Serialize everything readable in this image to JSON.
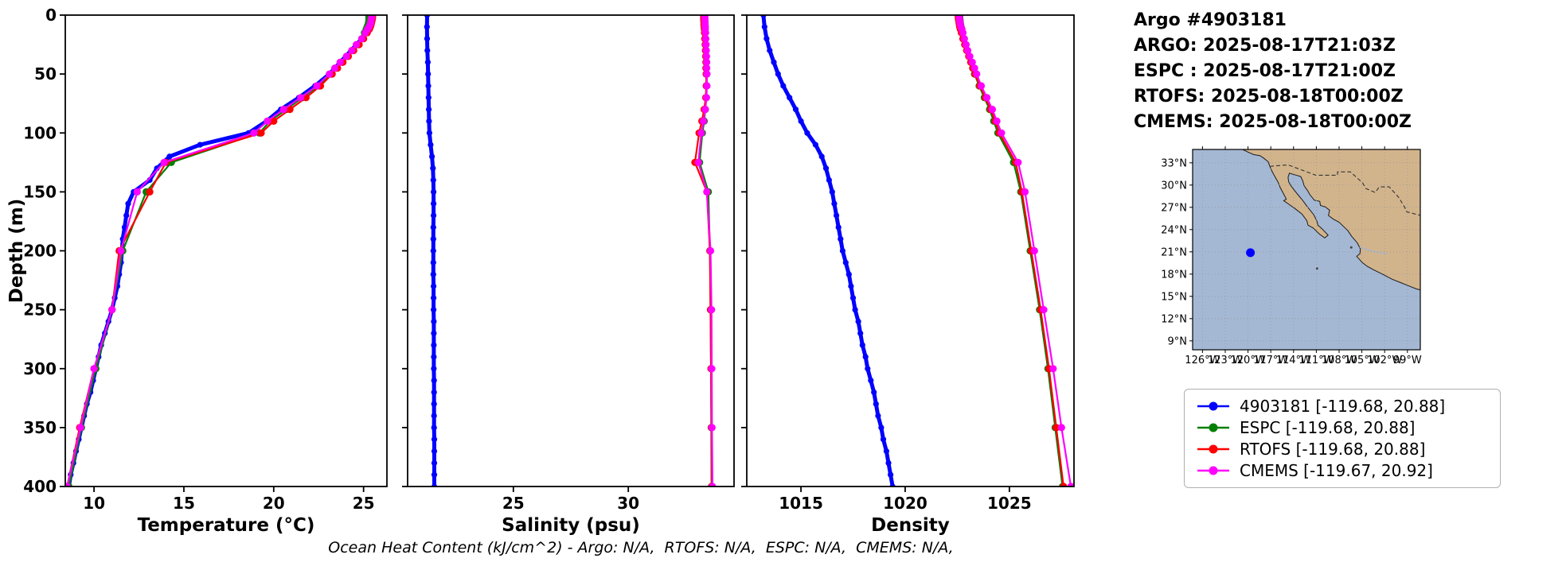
{
  "header": {
    "title": "Argo #4903181",
    "lines": [
      "ARGO: 2025-08-17T21:03Z",
      "ESPC : 2025-08-17T21:00Z",
      "RTOFS: 2025-08-18T00:00Z",
      "CMEMS: 2025-08-18T00:00Z"
    ]
  },
  "footer": {
    "caption": "Ocean Heat Content (kJ/cm^2) - Argo: N/A,  RTOFS: N/A,  ESPC: N/A,  CMEMS: N/A,"
  },
  "legend": {
    "items": [
      {
        "label": "4903181 [-119.68, 20.88]",
        "color": "#0000ff"
      },
      {
        "label": "ESPC [-119.68, 20.88]",
        "color": "#008000"
      },
      {
        "label": "RTOFS [-119.68, 20.88]",
        "color": "#ff0000"
      },
      {
        "label": "CMEMS [-119.67, 20.92]",
        "color": "#ff00ff"
      }
    ]
  },
  "map": {
    "extent": {
      "lon": [
        -127.3,
        -97.3
      ],
      "lat": [
        7.8,
        34.8
      ]
    },
    "colors": {
      "ocean": "#a4b8d4",
      "land": "#d2b48c",
      "coast": "#1a1a1a",
      "border": "#333333",
      "grid": "#999999"
    },
    "lat_ticks": {
      "values": [
        33,
        30,
        27,
        24,
        21,
        18,
        15,
        12,
        9
      ],
      "labels": [
        "33°N",
        "30°N",
        "27°N",
        "24°N",
        "21°N",
        "18°N",
        "15°N",
        "12°N",
        "9°N"
      ]
    },
    "lon_ticks": {
      "values": [
        -126,
        -123,
        -120,
        -117,
        -114,
        -111,
        -108,
        -105,
        -102,
        -99
      ],
      "labels": [
        "126°W",
        "123°W",
        "120°W",
        "117°W",
        "114°W",
        "111°W",
        "108°W",
        "105°W",
        "102°W",
        "99°W"
      ]
    },
    "marker": {
      "lon": -119.68,
      "lat": 20.88,
      "color": "#0000ff"
    }
  },
  "chart_data": [
    {
      "type": "line",
      "name": "temperature",
      "xlabel": "Temperature (°C)",
      "ylabel": "Depth (m)",
      "xlim": [
        8.4,
        26.3
      ],
      "ylim": [
        0,
        400
      ],
      "xticks": [
        10,
        15,
        20,
        25
      ],
      "yticks": [
        0,
        50,
        100,
        150,
        200,
        250,
        300,
        350,
        400
      ],
      "grid": false,
      "y_axis_inverted_depth": true,
      "series": [
        {
          "name": "4903181",
          "color": "#0000ff",
          "depths": [
            0,
            10,
            20,
            30,
            40,
            50,
            60,
            70,
            80,
            90,
            100,
            110,
            120,
            130,
            140,
            150,
            160,
            170,
            180,
            190,
            200,
            210,
            220,
            230,
            240,
            250,
            260,
            270,
            280,
            290,
            300,
            310,
            320,
            330,
            340,
            350,
            360,
            370,
            380,
            390,
            400
          ],
          "values": [
            25.4,
            25.3,
            24.9,
            24.3,
            23.7,
            23.1,
            22.3,
            21.4,
            20.4,
            19.6,
            18.6,
            15.9,
            14.2,
            13.5,
            13.1,
            12.2,
            11.9,
            11.8,
            11.7,
            11.6,
            11.55,
            11.5,
            11.4,
            11.3,
            11.15,
            11.0,
            10.8,
            10.6,
            10.4,
            10.25,
            10.1,
            9.95,
            9.8,
            9.6,
            9.45,
            9.3,
            9.15,
            9.0,
            8.85,
            8.7,
            8.6
          ]
        },
        {
          "name": "ESPC",
          "color": "#008000",
          "depths": [
            0,
            2,
            4,
            6,
            8,
            10,
            12,
            15,
            20,
            25,
            30,
            35,
            40,
            45,
            50,
            60,
            70,
            80,
            90,
            100,
            125,
            150,
            200,
            250,
            300,
            350,
            400
          ],
          "values": [
            25.3,
            25.3,
            25.3,
            25.28,
            25.25,
            25.2,
            25.15,
            25.05,
            24.9,
            24.65,
            24.4,
            24.1,
            23.8,
            23.5,
            23.2,
            22.5,
            21.6,
            20.7,
            19.8,
            19.2,
            14.3,
            12.9,
            11.6,
            11.0,
            10.1,
            9.3,
            8.6
          ]
        },
        {
          "name": "RTOFS",
          "color": "#ff0000",
          "depths": [
            0,
            2,
            4,
            6,
            8,
            10,
            12,
            15,
            20,
            25,
            30,
            35,
            40,
            45,
            50,
            60,
            70,
            80,
            90,
            100,
            125,
            150,
            200,
            250,
            300,
            350,
            400
          ],
          "values": [
            25.5,
            25.5,
            25.48,
            25.45,
            25.42,
            25.38,
            25.32,
            25.2,
            25.0,
            24.75,
            24.45,
            24.15,
            23.85,
            23.55,
            23.25,
            22.6,
            21.8,
            20.9,
            20.0,
            19.3,
            14.0,
            13.1,
            11.4,
            11.0,
            10.0,
            9.2,
            8.5
          ]
        },
        {
          "name": "CMEMS",
          "color": "#ff00ff",
          "depths": [
            0,
            2,
            4,
            6,
            8,
            10,
            12,
            15,
            20,
            25,
            30,
            35,
            40,
            45,
            50,
            60,
            70,
            80,
            90,
            100,
            125,
            150,
            200,
            250,
            300,
            350,
            400
          ],
          "values": [
            25.45,
            25.45,
            25.42,
            25.4,
            25.36,
            25.3,
            25.22,
            25.1,
            24.9,
            24.6,
            24.35,
            24.05,
            23.7,
            23.4,
            23.1,
            22.4,
            21.5,
            20.55,
            19.65,
            18.9,
            13.9,
            12.4,
            11.5,
            11.0,
            10.0,
            9.25,
            8.5
          ]
        }
      ]
    },
    {
      "type": "line",
      "name": "salinity",
      "xlabel": "Salinity (psu)",
      "ylabel": "Depth (m)",
      "xlim": [
        20.4,
        34.6
      ],
      "ylim": [
        0,
        400
      ],
      "xticks": [
        25,
        30
      ],
      "yticks": [
        0,
        50,
        100,
        150,
        200,
        250,
        300,
        350,
        400
      ],
      "grid": false,
      "y_axis_inverted_depth": true,
      "series": [
        {
          "name": "4903181",
          "color": "#0000ff",
          "depths": [
            0,
            10,
            20,
            30,
            40,
            50,
            60,
            70,
            80,
            90,
            100,
            110,
            120,
            130,
            140,
            150,
            160,
            170,
            180,
            190,
            200,
            210,
            220,
            230,
            240,
            250,
            260,
            270,
            280,
            290,
            300,
            310,
            320,
            330,
            340,
            350,
            360,
            370,
            380,
            390,
            400
          ],
          "values": [
            21.25,
            21.24,
            21.25,
            21.26,
            21.28,
            21.29,
            21.3,
            21.31,
            21.32,
            21.33,
            21.35,
            21.4,
            21.46,
            21.5,
            21.52,
            21.53,
            21.53,
            21.53,
            21.52,
            21.52,
            21.52,
            21.52,
            21.52,
            21.53,
            21.53,
            21.53,
            21.54,
            21.54,
            21.54,
            21.54,
            21.54,
            21.55,
            21.55,
            21.55,
            21.55,
            21.55,
            21.56,
            21.56,
            21.56,
            21.56,
            21.56
          ]
        },
        {
          "name": "ESPC",
          "color": "#008000",
          "depths": [
            0,
            2,
            4,
            6,
            8,
            10,
            12,
            15,
            20,
            25,
            30,
            35,
            40,
            45,
            50,
            60,
            70,
            80,
            90,
            100,
            125,
            150,
            200,
            250,
            300,
            350,
            400
          ],
          "values": [
            33.3,
            33.3,
            33.3,
            33.3,
            33.31,
            33.31,
            33.32,
            33.33,
            33.34,
            33.35,
            33.36,
            33.37,
            33.38,
            33.38,
            33.39,
            33.4,
            33.38,
            33.35,
            33.3,
            33.22,
            33.1,
            33.48,
            33.55,
            33.58,
            33.6,
            33.61,
            33.62
          ]
        },
        {
          "name": "RTOFS",
          "color": "#ff0000",
          "depths": [
            0,
            2,
            4,
            6,
            8,
            10,
            12,
            15,
            20,
            25,
            30,
            35,
            40,
            45,
            50,
            60,
            70,
            80,
            90,
            100,
            125,
            150,
            200,
            250,
            300,
            350,
            400
          ],
          "values": [
            33.28,
            33.28,
            33.28,
            33.29,
            33.29,
            33.3,
            33.31,
            33.32,
            33.33,
            33.35,
            33.36,
            33.37,
            33.38,
            33.38,
            33.39,
            33.39,
            33.37,
            33.3,
            33.2,
            33.08,
            32.9,
            33.42,
            33.55,
            33.58,
            33.6,
            33.62,
            33.63
          ]
        },
        {
          "name": "CMEMS",
          "color": "#ff00ff",
          "depths": [
            0,
            2,
            4,
            6,
            8,
            10,
            12,
            15,
            20,
            25,
            30,
            35,
            40,
            45,
            50,
            60,
            70,
            80,
            90,
            100,
            125,
            150,
            200,
            250,
            300,
            350,
            400
          ],
          "values": [
            33.33,
            33.33,
            33.33,
            33.34,
            33.34,
            33.35,
            33.35,
            33.36,
            33.37,
            33.38,
            33.39,
            33.4,
            33.41,
            33.41,
            33.42,
            33.42,
            33.4,
            33.35,
            33.27,
            33.18,
            33.05,
            33.42,
            33.58,
            33.62,
            33.63,
            33.64,
            33.66
          ]
        }
      ]
    },
    {
      "type": "line",
      "name": "density",
      "xlabel": "Density",
      "ylabel": "Depth (m)",
      "xlim": [
        1012.4,
        1028.1
      ],
      "ylim": [
        0,
        400
      ],
      "xticks": [
        1015,
        1020,
        1025
      ],
      "yticks": [
        0,
        50,
        100,
        150,
        200,
        250,
        300,
        350,
        400
      ],
      "grid": false,
      "y_axis_inverted_depth": true,
      "series": [
        {
          "name": "4903181",
          "color": "#0000ff",
          "depths": [
            0,
            10,
            20,
            30,
            40,
            50,
            60,
            70,
            80,
            90,
            100,
            110,
            120,
            130,
            140,
            150,
            160,
            170,
            180,
            190,
            200,
            210,
            220,
            230,
            240,
            250,
            260,
            270,
            280,
            290,
            300,
            310,
            320,
            330,
            340,
            350,
            360,
            370,
            380,
            390,
            400
          ],
          "values": [
            1013.2,
            1013.25,
            1013.35,
            1013.5,
            1013.7,
            1013.9,
            1014.15,
            1014.45,
            1014.75,
            1015.0,
            1015.3,
            1015.7,
            1016.0,
            1016.2,
            1016.35,
            1016.5,
            1016.6,
            1016.7,
            1016.8,
            1016.9,
            1017.0,
            1017.15,
            1017.3,
            1017.4,
            1017.5,
            1017.6,
            1017.75,
            1017.85,
            1017.95,
            1018.1,
            1018.2,
            1018.35,
            1018.5,
            1018.6,
            1018.7,
            1018.85,
            1018.95,
            1019.1,
            1019.2,
            1019.3,
            1019.4
          ]
        },
        {
          "name": "ESPC",
          "color": "#008000",
          "depths": [
            0,
            2,
            4,
            6,
            8,
            10,
            12,
            15,
            20,
            25,
            30,
            35,
            40,
            45,
            50,
            60,
            70,
            80,
            90,
            100,
            125,
            150,
            200,
            250,
            300,
            350,
            400
          ],
          "values": [
            1022.62,
            1022.62,
            1022.63,
            1022.64,
            1022.66,
            1022.68,
            1022.7,
            1022.74,
            1022.8,
            1022.88,
            1022.97,
            1023.06,
            1023.15,
            1023.24,
            1023.33,
            1023.55,
            1023.8,
            1024.05,
            1024.25,
            1024.45,
            1025.2,
            1025.55,
            1026.0,
            1026.45,
            1026.85,
            1027.2,
            1027.55
          ]
        },
        {
          "name": "RTOFS",
          "color": "#ff0000",
          "depths": [
            0,
            2,
            4,
            6,
            8,
            10,
            12,
            15,
            20,
            25,
            30,
            35,
            40,
            45,
            50,
            60,
            70,
            80,
            90,
            100,
            125,
            150,
            200,
            250,
            300,
            350,
            400
          ],
          "values": [
            1022.55,
            1022.55,
            1022.56,
            1022.58,
            1022.6,
            1022.62,
            1022.65,
            1022.7,
            1022.77,
            1022.86,
            1022.95,
            1023.05,
            1023.15,
            1023.25,
            1023.35,
            1023.58,
            1023.85,
            1024.1,
            1024.32,
            1024.52,
            1025.3,
            1025.6,
            1026.05,
            1026.5,
            1026.9,
            1027.25,
            1027.6
          ]
        },
        {
          "name": "CMEMS",
          "color": "#ff00ff",
          "depths": [
            0,
            2,
            4,
            6,
            8,
            10,
            12,
            15,
            20,
            25,
            30,
            35,
            40,
            45,
            50,
            60,
            70,
            80,
            90,
            100,
            125,
            150,
            200,
            250,
            300,
            350,
            400
          ],
          "values": [
            1022.6,
            1022.6,
            1022.61,
            1022.63,
            1022.65,
            1022.68,
            1022.72,
            1022.77,
            1022.84,
            1022.92,
            1023.0,
            1023.1,
            1023.22,
            1023.33,
            1023.43,
            1023.65,
            1023.92,
            1024.18,
            1024.4,
            1024.62,
            1025.42,
            1025.75,
            1026.2,
            1026.65,
            1027.1,
            1027.5,
            1027.95
          ]
        }
      ]
    }
  ]
}
